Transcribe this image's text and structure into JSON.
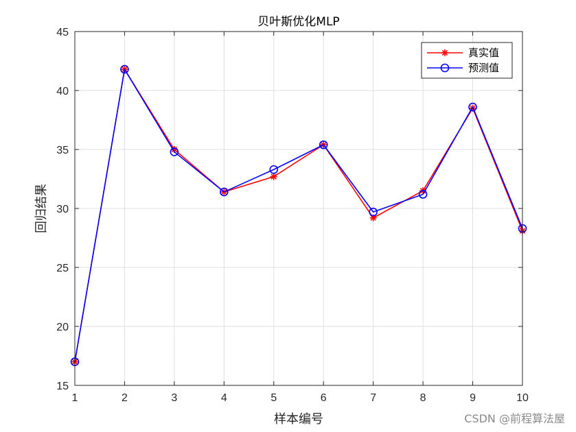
{
  "chart_data": {
    "type": "line",
    "title": "贝叶斯优化MLP",
    "xlabel": "样本编号",
    "ylabel": "回归结果",
    "x": [
      1,
      2,
      3,
      4,
      5,
      6,
      7,
      8,
      9,
      10
    ],
    "xlim": [
      1,
      10
    ],
    "ylim": [
      15,
      45
    ],
    "xticks": [
      1,
      2,
      3,
      4,
      5,
      6,
      7,
      8,
      9,
      10
    ],
    "yticks": [
      15,
      20,
      25,
      30,
      35,
      40,
      45
    ],
    "grid": true,
    "legend_position": "top-right",
    "series": [
      {
        "name": "真实值",
        "color": "#ff0000",
        "marker": "asterisk",
        "values": [
          17.0,
          41.8,
          35.0,
          31.4,
          32.7,
          35.4,
          29.2,
          31.5,
          38.5,
          28.1
        ]
      },
      {
        "name": "预测值",
        "color": "#0000ff",
        "marker": "circle",
        "values": [
          17.0,
          41.8,
          34.8,
          31.4,
          33.3,
          35.4,
          29.7,
          31.2,
          38.6,
          28.3
        ]
      }
    ]
  },
  "watermark": "CSDN @前程算法屋"
}
